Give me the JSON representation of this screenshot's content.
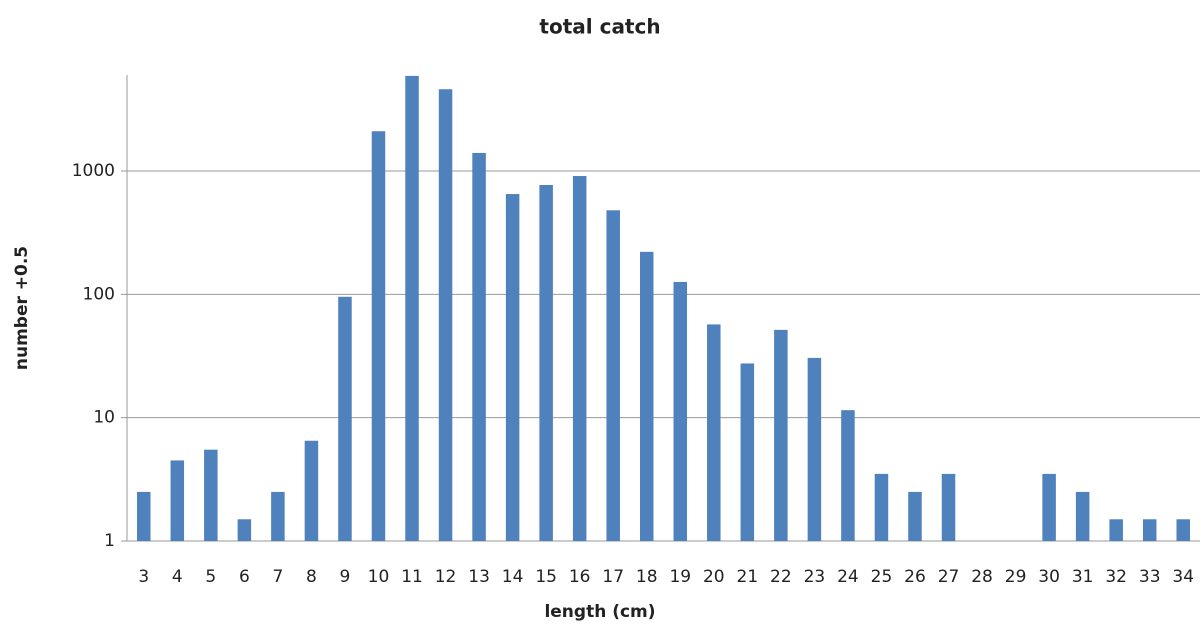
{
  "chart_data": {
    "type": "bar",
    "title": "total catch",
    "x_label": "length (cm)",
    "y_label": "number +0.5",
    "categories": [
      3,
      4,
      5,
      6,
      7,
      8,
      9,
      10,
      11,
      12,
      13,
      14,
      15,
      16,
      17,
      18,
      19,
      20,
      21,
      22,
      23,
      24,
      25,
      26,
      27,
      28,
      29,
      30,
      31,
      32,
      33,
      34
    ],
    "values": [
      2.5,
      4.5,
      5.5,
      1.5,
      2.5,
      6.5,
      95.5,
      2100,
      5900,
      4600,
      1400,
      650,
      770,
      910,
      480,
      221,
      126,
      57,
      27.5,
      51.5,
      30.5,
      11.5,
      3.5,
      2.5,
      3.5,
      null,
      null,
      3.5,
      2.5,
      1.5,
      1.5,
      1.5
    ],
    "color": "#4f81bd",
    "ylim": [
      1,
      6000
    ],
    "yticks": [
      1,
      10,
      100,
      1000
    ],
    "log_scale": true,
    "grid": true
  }
}
